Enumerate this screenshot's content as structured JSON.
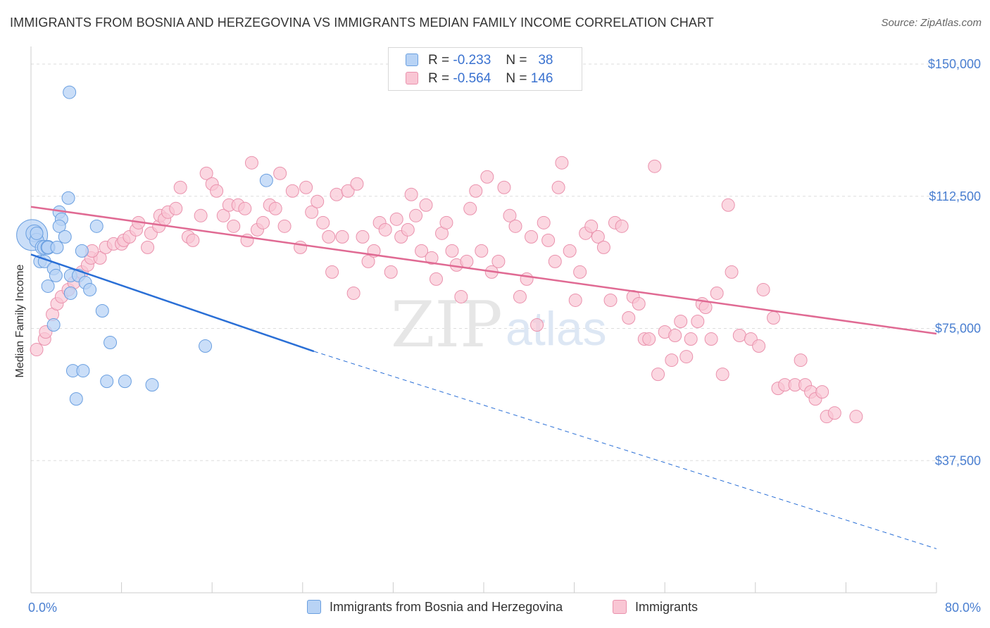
{
  "title": "IMMIGRANTS FROM BOSNIA AND HERZEGOVINA VS IMMIGRANTS MEDIAN FAMILY INCOME CORRELATION CHART",
  "source": "Source: ZipAtlas.com",
  "watermark": {
    "zip": "ZIP",
    "atlas": "atlas"
  },
  "legend": {
    "series1": {
      "r_label": "R =",
      "r_value": "-0.233",
      "n_label": "N =",
      "n_value": "38"
    },
    "series2": {
      "r_label": "R =",
      "r_value": "-0.564",
      "n_label": "N =",
      "n_value": "146"
    }
  },
  "colors": {
    "blue_fill": "#b8d3f5",
    "blue_stroke": "#6a9fe0",
    "blue_line": "#2a6fd6",
    "pink_fill": "#f9c6d4",
    "pink_stroke": "#ea92ad",
    "pink_line": "#e06a93",
    "tick_text": "#4a7fd1",
    "grid": "#dddddd"
  },
  "chart_data": {
    "type": "scatter",
    "xlabel": "",
    "ylabel": "Median Family Income",
    "xlim": [
      0,
      80
    ],
    "ylim": [
      0,
      155000
    ],
    "x_tick_labels": [
      "0.0%",
      "80.0%"
    ],
    "y_ticks": [
      37500,
      75000,
      112500,
      150000
    ],
    "y_tick_labels": [
      "$37,500",
      "$75,000",
      "$112,500",
      "$150,000"
    ],
    "grid": true,
    "series": [
      {
        "name": "Immigrants from Bosnia and Herzegovina",
        "color": "#b8d3f5",
        "points": [
          [
            0.1,
            101500,
            22
          ],
          [
            0.3,
            102000,
            12
          ],
          [
            0.5,
            100000,
            10
          ],
          [
            1.0,
            98000,
            10
          ],
          [
            1.2,
            98000,
            10
          ],
          [
            1.5,
            98000,
            10
          ],
          [
            0.8,
            94000,
            9
          ],
          [
            1.2,
            94000,
            9
          ],
          [
            1.5,
            98000,
            9
          ],
          [
            2.0,
            92000,
            9
          ],
          [
            2.2,
            90000,
            9
          ],
          [
            1.5,
            87000,
            9
          ],
          [
            2.5,
            108000,
            9
          ],
          [
            2.7,
            106000,
            9
          ],
          [
            2.5,
            104000,
            9
          ],
          [
            3.0,
            101000,
            9
          ],
          [
            3.3,
            112000,
            9
          ],
          [
            3.4,
            142000,
            9
          ],
          [
            3.5,
            85000,
            9
          ],
          [
            3.5,
            90000,
            9
          ],
          [
            4.2,
            90000,
            9
          ],
          [
            4.5,
            97000,
            9
          ],
          [
            4.8,
            88000,
            9
          ],
          [
            5.2,
            86000,
            9
          ],
          [
            5.8,
            104000,
            9
          ],
          [
            6.3,
            80000,
            9
          ],
          [
            7.0,
            71000,
            9
          ],
          [
            2.0,
            76000,
            9
          ],
          [
            3.7,
            63000,
            9
          ],
          [
            4.6,
            63000,
            9
          ],
          [
            4.0,
            55000,
            9
          ],
          [
            6.7,
            60000,
            9
          ],
          [
            8.3,
            60000,
            9
          ],
          [
            10.7,
            59000,
            9
          ],
          [
            15.4,
            70000,
            9
          ],
          [
            20.8,
            117000,
            9
          ],
          [
            0.5,
            102000,
            9
          ],
          [
            2.3,
            98000,
            9
          ]
        ],
        "trend": {
          "x0": 0,
          "y0": 96000,
          "x1": 25,
          "y1": 68500,
          "dash_to_x": 80,
          "dash_to_y": 12500
        }
      },
      {
        "name": "Immigrants",
        "color": "#f9c6d4",
        "points": [
          [
            0.5,
            69000
          ],
          [
            1.2,
            72000
          ],
          [
            1.3,
            74000
          ],
          [
            1.9,
            79000
          ],
          [
            2.3,
            82000
          ],
          [
            2.7,
            84000
          ],
          [
            3.3,
            86000
          ],
          [
            3.8,
            88000
          ],
          [
            4.5,
            91000
          ],
          [
            5.0,
            93000
          ],
          [
            5.3,
            95000
          ],
          [
            6.1,
            95000
          ],
          [
            5.4,
            97000
          ],
          [
            6.6,
            98000
          ],
          [
            7.3,
            99000
          ],
          [
            8.0,
            99000
          ],
          [
            8.2,
            100000
          ],
          [
            8.7,
            101000
          ],
          [
            9.3,
            103000
          ],
          [
            9.5,
            105000
          ],
          [
            10.3,
            98000
          ],
          [
            10.6,
            102000
          ],
          [
            11.3,
            104000
          ],
          [
            11.4,
            107000
          ],
          [
            11.8,
            106000
          ],
          [
            12.1,
            108000
          ],
          [
            12.8,
            109000
          ],
          [
            13.2,
            115000
          ],
          [
            13.9,
            101000
          ],
          [
            14.3,
            100000
          ],
          [
            15.0,
            107000
          ],
          [
            15.5,
            119000
          ],
          [
            16.0,
            116000
          ],
          [
            16.4,
            114000
          ],
          [
            17.0,
            107000
          ],
          [
            17.5,
            110000
          ],
          [
            17.9,
            104000
          ],
          [
            18.3,
            110000
          ],
          [
            18.9,
            109000
          ],
          [
            19.1,
            100000
          ],
          [
            19.5,
            122000
          ],
          [
            20.0,
            103000
          ],
          [
            20.5,
            105000
          ],
          [
            21.1,
            110000
          ],
          [
            21.6,
            109000
          ],
          [
            22.0,
            119000
          ],
          [
            22.4,
            104000
          ],
          [
            23.1,
            114000
          ],
          [
            23.8,
            98000
          ],
          [
            24.3,
            115000
          ],
          [
            24.8,
            108000
          ],
          [
            25.3,
            111000
          ],
          [
            25.8,
            105000
          ],
          [
            26.3,
            101000
          ],
          [
            26.6,
            91000
          ],
          [
            27.0,
            113000
          ],
          [
            27.5,
            101000
          ],
          [
            28.0,
            114000
          ],
          [
            28.5,
            85000
          ],
          [
            28.8,
            116000
          ],
          [
            29.3,
            101000
          ],
          [
            29.8,
            94000
          ],
          [
            30.3,
            97000
          ],
          [
            30.8,
            105000
          ],
          [
            31.3,
            103000
          ],
          [
            31.8,
            91000
          ],
          [
            32.3,
            106000
          ],
          [
            32.7,
            101000
          ],
          [
            33.3,
            103000
          ],
          [
            33.6,
            113000
          ],
          [
            34.0,
            107000
          ],
          [
            34.5,
            97000
          ],
          [
            34.9,
            110000
          ],
          [
            35.4,
            95000
          ],
          [
            35.8,
            89000
          ],
          [
            36.3,
            102000
          ],
          [
            36.7,
            105000
          ],
          [
            37.2,
            97000
          ],
          [
            37.6,
            93000
          ],
          [
            38.0,
            84000
          ],
          [
            38.5,
            94000
          ],
          [
            38.8,
            109000
          ],
          [
            39.3,
            114000
          ],
          [
            39.8,
            97000
          ],
          [
            40.3,
            118000
          ],
          [
            40.7,
            91000
          ],
          [
            41.3,
            94000
          ],
          [
            41.8,
            115000
          ],
          [
            42.3,
            107000
          ],
          [
            42.8,
            104000
          ],
          [
            43.2,
            84000
          ],
          [
            43.8,
            89000
          ],
          [
            44.2,
            101000
          ],
          [
            44.7,
            76000
          ],
          [
            45.3,
            105000
          ],
          [
            45.7,
            100000
          ],
          [
            46.3,
            94000
          ],
          [
            46.6,
            115000
          ],
          [
            46.9,
            122000
          ],
          [
            47.6,
            97000
          ],
          [
            48.1,
            83000
          ],
          [
            48.5,
            91000
          ],
          [
            49.0,
            102000
          ],
          [
            49.5,
            104000
          ],
          [
            50.1,
            101000
          ],
          [
            50.6,
            98000
          ],
          [
            51.2,
            83000
          ],
          [
            51.6,
            105000
          ],
          [
            52.2,
            104000
          ],
          [
            52.8,
            78000
          ],
          [
            53.2,
            84000
          ],
          [
            53.7,
            82000
          ],
          [
            54.2,
            72000
          ],
          [
            54.6,
            72000
          ],
          [
            55.1,
            121000
          ],
          [
            55.4,
            62000
          ],
          [
            56.0,
            74000
          ],
          [
            56.6,
            66000
          ],
          [
            56.9,
            73000
          ],
          [
            57.4,
            77000
          ],
          [
            57.9,
            67000
          ],
          [
            58.3,
            72000
          ],
          [
            58.9,
            77000
          ],
          [
            59.3,
            82000
          ],
          [
            59.6,
            81000
          ],
          [
            60.1,
            72000
          ],
          [
            60.6,
            85000
          ],
          [
            61.1,
            62000
          ],
          [
            61.6,
            110000
          ],
          [
            61.9,
            91000
          ],
          [
            62.6,
            73000
          ],
          [
            63.6,
            72000
          ],
          [
            64.3,
            70000
          ],
          [
            64.7,
            86000
          ],
          [
            65.6,
            78000
          ],
          [
            66.0,
            58000
          ],
          [
            66.6,
            59000
          ],
          [
            67.5,
            59000
          ],
          [
            68.0,
            66000
          ],
          [
            68.4,
            59000
          ],
          [
            68.9,
            57000
          ],
          [
            69.3,
            55000
          ],
          [
            69.9,
            57000
          ],
          [
            70.3,
            50000
          ],
          [
            71.0,
            51000
          ],
          [
            72.9,
            50000
          ]
        ],
        "trend": {
          "x0": 0,
          "y0": 109500,
          "x1": 80,
          "y1": 73500
        }
      }
    ]
  }
}
